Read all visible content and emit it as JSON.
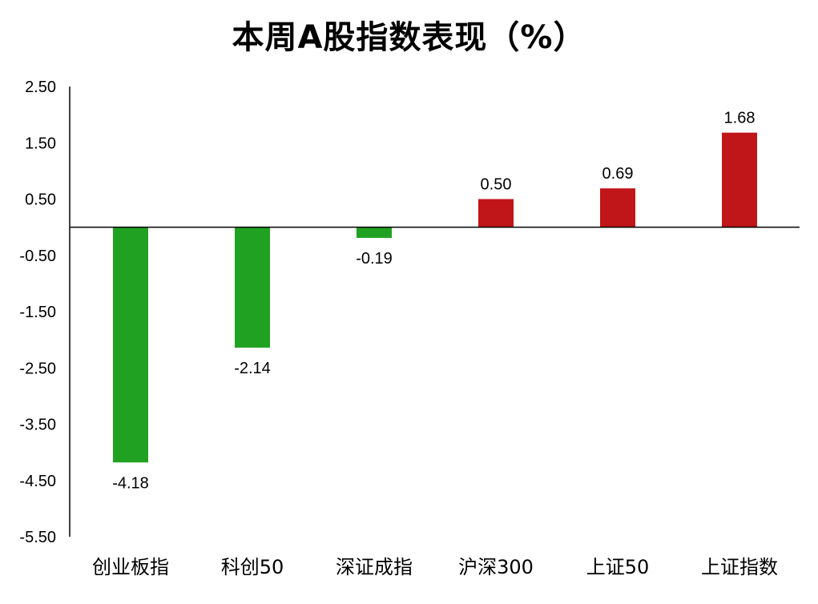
{
  "chart_data": {
    "type": "bar",
    "title": "本周A股指数表现（%）",
    "categories": [
      "创业板指",
      "科创50",
      "深证成指",
      "沪深300",
      "上证50",
      "上证指数"
    ],
    "values": [
      -4.18,
      -2.14,
      -0.19,
      0.5,
      0.69,
      1.68
    ],
    "value_labels": [
      "-4.18",
      "-2.14",
      "-0.19",
      "0.50",
      "0.69",
      "1.68"
    ],
    "ylim": [
      -5.5,
      2.5
    ],
    "yticks": [
      2.5,
      1.5,
      0.5,
      -0.5,
      -1.5,
      -2.5,
      -3.5,
      -4.5,
      -5.5
    ],
    "ytick_labels": [
      "2.50",
      "1.50",
      "0.50",
      "-0.50",
      "-1.50",
      "-2.50",
      "-3.50",
      "-4.50",
      "-5.50"
    ],
    "xlabel": "",
    "ylabel": "",
    "grid": false,
    "legend": "none",
    "colors": {
      "positive": "#c0161a",
      "negative": "#21a121",
      "axis": "#000000"
    }
  }
}
